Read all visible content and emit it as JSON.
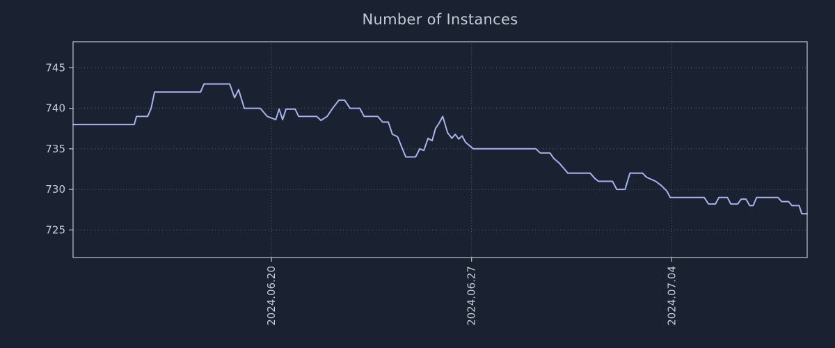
{
  "colors": {
    "background": "#1a2130",
    "text": "#c6ccd5",
    "frame": "#c0c6ce",
    "grid": "#8a91a0",
    "line": "#a8b3f0"
  },
  "chart_data": {
    "type": "line",
    "title": "Number of Instances",
    "xlabel": "",
    "ylabel": "",
    "grid": true,
    "legend_position": "none",
    "xlim": [
      0,
      25.68
    ],
    "ylim": [
      721.6,
      748.2
    ],
    "x_ticks": [
      {
        "pos": 6.94,
        "label": "2024.06.20"
      },
      {
        "pos": 13.94,
        "label": "2024.06.27"
      },
      {
        "pos": 20.94,
        "label": "2024.07.04"
      }
    ],
    "y_ticks": [
      {
        "pos": 725,
        "label": "725"
      },
      {
        "pos": 730,
        "label": "730"
      },
      {
        "pos": 735,
        "label": "735"
      },
      {
        "pos": 740,
        "label": "740"
      },
      {
        "pos": 745,
        "label": "745"
      }
    ],
    "series": [
      {
        "name": "instances",
        "color": "#a8b3f0",
        "points": [
          [
            0.0,
            738
          ],
          [
            2.14,
            738
          ],
          [
            2.22,
            739
          ],
          [
            2.61,
            739
          ],
          [
            2.73,
            740
          ],
          [
            2.85,
            742
          ],
          [
            4.46,
            742
          ],
          [
            4.58,
            743
          ],
          [
            5.48,
            743
          ],
          [
            5.65,
            741.3
          ],
          [
            5.79,
            742.3
          ],
          [
            5.99,
            740
          ],
          [
            6.55,
            740
          ],
          [
            6.79,
            739
          ],
          [
            7.09,
            738.6
          ],
          [
            7.21,
            739.9
          ],
          [
            7.33,
            738.6
          ],
          [
            7.45,
            739.9
          ],
          [
            7.77,
            739.9
          ],
          [
            7.89,
            739
          ],
          [
            8.52,
            739
          ],
          [
            8.67,
            738.5
          ],
          [
            8.89,
            739
          ],
          [
            9.08,
            740
          ],
          [
            9.3,
            741
          ],
          [
            9.5,
            741
          ],
          [
            9.69,
            740
          ],
          [
            10.03,
            740
          ],
          [
            10.18,
            739
          ],
          [
            10.66,
            739
          ],
          [
            10.83,
            738.3
          ],
          [
            11.03,
            738.3
          ],
          [
            11.17,
            736.8
          ],
          [
            11.35,
            736.5
          ],
          [
            11.52,
            735
          ],
          [
            11.64,
            734
          ],
          [
            11.98,
            734
          ],
          [
            12.13,
            735
          ],
          [
            12.27,
            734.8
          ],
          [
            12.42,
            736.3
          ],
          [
            12.56,
            736
          ],
          [
            12.68,
            737.5
          ],
          [
            12.81,
            738.2
          ],
          [
            12.93,
            739
          ],
          [
            13.1,
            737
          ],
          [
            13.25,
            736.3
          ],
          [
            13.37,
            736.8
          ],
          [
            13.49,
            736.2
          ],
          [
            13.61,
            736.6
          ],
          [
            13.73,
            735.8
          ],
          [
            14.0,
            735
          ],
          [
            16.19,
            735
          ],
          [
            16.34,
            734.5
          ],
          [
            16.68,
            734.5
          ],
          [
            16.82,
            733.8
          ],
          [
            17.02,
            733.2
          ],
          [
            17.19,
            732.5
          ],
          [
            17.31,
            732
          ],
          [
            18.09,
            732
          ],
          [
            18.24,
            731.4
          ],
          [
            18.38,
            731
          ],
          [
            18.87,
            731
          ],
          [
            19.02,
            730
          ],
          [
            19.31,
            730
          ],
          [
            19.48,
            732
          ],
          [
            19.92,
            732
          ],
          [
            20.06,
            731.5
          ],
          [
            20.38,
            731
          ],
          [
            20.57,
            730.5
          ],
          [
            20.77,
            729.8
          ],
          [
            20.89,
            729
          ],
          [
            22.08,
            729
          ],
          [
            22.23,
            728.2
          ],
          [
            22.47,
            728.2
          ],
          [
            22.59,
            729
          ],
          [
            22.89,
            729
          ],
          [
            23.01,
            728.2
          ],
          [
            23.25,
            728.2
          ],
          [
            23.37,
            728.8
          ],
          [
            23.54,
            728.8
          ],
          [
            23.67,
            728
          ],
          [
            23.79,
            728
          ],
          [
            23.91,
            729
          ],
          [
            24.66,
            729
          ],
          [
            24.79,
            728.5
          ],
          [
            25.03,
            728.5
          ],
          [
            25.15,
            728
          ],
          [
            25.4,
            728
          ],
          [
            25.49,
            727
          ],
          [
            25.68,
            727
          ]
        ]
      }
    ]
  }
}
